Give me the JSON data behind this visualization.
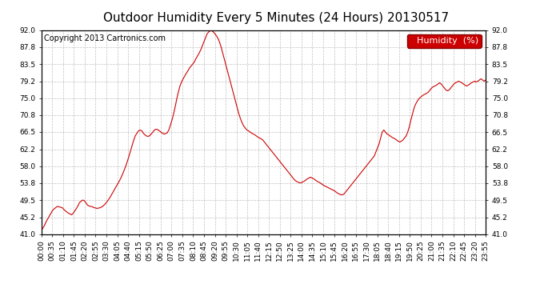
{
  "title": "Outdoor Humidity Every 5 Minutes (24 Hours) 20130517",
  "copyright_text": "Copyright 2013 Cartronics.com",
  "legend_label": "Humidity  (%)",
  "legend_bg": "#cc0000",
  "legend_text_color": "#ffffff",
  "line_color": "#cc0000",
  "background_color": "#ffffff",
  "grid_color": "#b0b0b0",
  "ylim": [
    41.0,
    92.0
  ],
  "yticks": [
    41.0,
    45.2,
    49.5,
    53.8,
    58.0,
    62.2,
    66.5,
    70.8,
    75.0,
    79.2,
    83.5,
    87.8,
    92.0
  ],
  "humidity_data": [
    42.0,
    42.5,
    43.2,
    44.1,
    44.8,
    45.5,
    46.2,
    46.9,
    47.3,
    47.6,
    47.9,
    47.8,
    47.7,
    47.6,
    47.2,
    46.8,
    46.5,
    46.2,
    46.0,
    45.8,
    46.2,
    46.8,
    47.4,
    48.1,
    48.9,
    49.2,
    49.5,
    49.3,
    48.8,
    48.2,
    48.0,
    47.9,
    47.8,
    47.6,
    47.5,
    47.4,
    47.5,
    47.6,
    47.8,
    48.1,
    48.5,
    49.0,
    49.5,
    50.1,
    50.8,
    51.5,
    52.2,
    52.9,
    53.6,
    54.3,
    55.1,
    56.0,
    57.0,
    58.0,
    59.2,
    60.5,
    61.8,
    63.2,
    64.5,
    65.6,
    66.2,
    66.8,
    67.0,
    66.8,
    66.2,
    65.8,
    65.5,
    65.4,
    65.6,
    66.0,
    66.5,
    67.0,
    67.2,
    67.1,
    66.8,
    66.5,
    66.2,
    66.0,
    66.1,
    66.3,
    67.0,
    68.2,
    69.5,
    71.0,
    72.8,
    74.8,
    76.5,
    78.0,
    79.0,
    79.8,
    80.5,
    81.2,
    81.8,
    82.5,
    83.0,
    83.5,
    84.0,
    84.8,
    85.5,
    86.2,
    87.0,
    88.0,
    89.0,
    90.0,
    91.0,
    91.5,
    91.8,
    91.8,
    91.5,
    91.0,
    90.5,
    89.8,
    88.8,
    87.5,
    86.0,
    84.5,
    83.0,
    81.5,
    80.0,
    78.5,
    77.0,
    75.5,
    74.0,
    72.5,
    71.0,
    69.8,
    68.8,
    68.0,
    67.5,
    67.0,
    66.8,
    66.5,
    66.2,
    66.0,
    65.8,
    65.5,
    65.2,
    65.0,
    64.8,
    64.5,
    64.0,
    63.5,
    63.0,
    62.5,
    62.0,
    61.5,
    61.0,
    60.5,
    60.0,
    59.5,
    59.0,
    58.5,
    58.0,
    57.5,
    57.0,
    56.5,
    56.0,
    55.5,
    55.0,
    54.5,
    54.2,
    54.0,
    53.8,
    53.8,
    54.0,
    54.2,
    54.5,
    54.8,
    55.0,
    55.2,
    55.0,
    54.8,
    54.5,
    54.2,
    54.0,
    53.8,
    53.5,
    53.2,
    53.0,
    52.8,
    52.6,
    52.4,
    52.2,
    52.0,
    51.8,
    51.5,
    51.2,
    51.0,
    50.8,
    50.8,
    51.0,
    51.5,
    52.0,
    52.5,
    53.0,
    53.5,
    54.0,
    54.5,
    55.0,
    55.5,
    56.0,
    56.5,
    57.0,
    57.5,
    58.0,
    58.5,
    59.0,
    59.5,
    60.0,
    60.5,
    61.5,
    62.5,
    63.5,
    65.0,
    66.5,
    67.0,
    66.5,
    66.0,
    65.8,
    65.5,
    65.2,
    65.0,
    64.8,
    64.5,
    64.2,
    64.0,
    64.2,
    64.5,
    65.0,
    65.5,
    66.5,
    67.8,
    69.5,
    71.0,
    72.5,
    73.5,
    74.2,
    74.8,
    75.2,
    75.5,
    75.8,
    76.0,
    76.2,
    76.5,
    77.0,
    77.5,
    77.8,
    78.0,
    78.2,
    78.5,
    78.8,
    78.5,
    78.0,
    77.5,
    77.0,
    76.8,
    77.0,
    77.5,
    78.0,
    78.5,
    78.8,
    79.0,
    79.2,
    79.0,
    78.8,
    78.5,
    78.2,
    78.0,
    78.2,
    78.5,
    78.8,
    79.0,
    79.2,
    79.0,
    79.2,
    79.5,
    79.8,
    79.5,
    79.2,
    79.5
  ],
  "xtick_labels": [
    "00:00",
    "00:35",
    "01:10",
    "01:45",
    "02:20",
    "02:55",
    "03:30",
    "04:05",
    "04:40",
    "05:15",
    "05:50",
    "06:25",
    "07:00",
    "07:35",
    "08:10",
    "08:45",
    "09:20",
    "09:55",
    "10:30",
    "11:05",
    "11:40",
    "12:15",
    "12:50",
    "13:25",
    "14:00",
    "14:35",
    "15:10",
    "15:45",
    "16:20",
    "16:55",
    "17:30",
    "18:05",
    "18:40",
    "19:15",
    "19:50",
    "20:25",
    "21:00",
    "21:35",
    "22:10",
    "22:45",
    "23:20",
    "23:55"
  ],
  "title_fontsize": 11,
  "copyright_fontsize": 7,
  "tick_fontsize": 6.5,
  "legend_fontsize": 8
}
